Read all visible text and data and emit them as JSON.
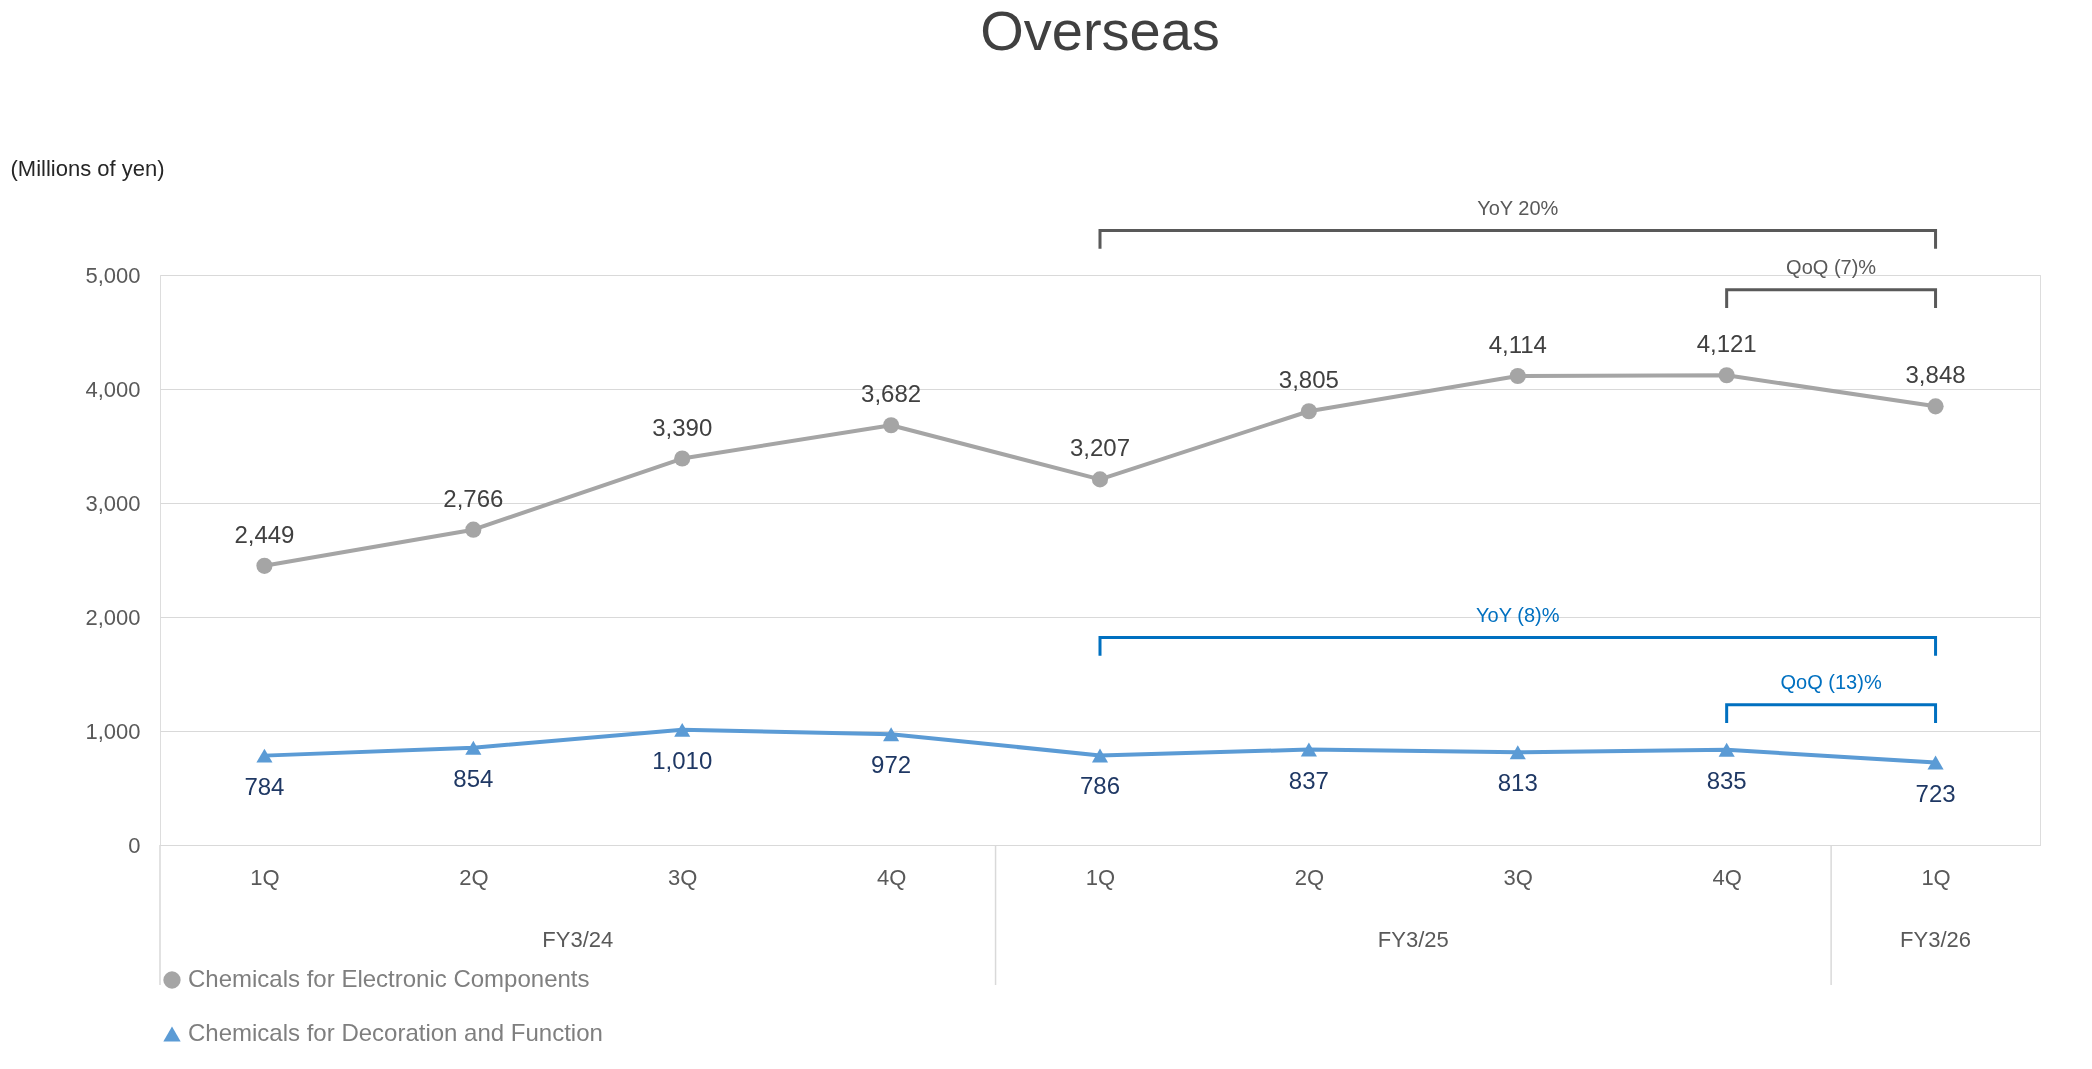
{
  "chart_data": {
    "type": "line",
    "title": "Overseas",
    "ylabel": "(Millions of yen)",
    "categories": [
      "1Q",
      "2Q",
      "3Q",
      "4Q",
      "1Q",
      "2Q",
      "3Q",
      "4Q",
      "1Q"
    ],
    "series": [
      {
        "name": "Chemicals for Electronic Components",
        "color": "#a5a5a5",
        "marker": "circle",
        "values": [
          2449,
          2766,
          3390,
          3682,
          3207,
          3805,
          4114,
          4121,
          3848
        ],
        "value_labels": [
          "2,449",
          "2,766",
          "3,390",
          "3,682",
          "3,207",
          "3,805",
          "4,114",
          "4,121",
          "3,848"
        ]
      },
      {
        "name": "Chemicals for Decoration and Function",
        "color": "#5b9bd5",
        "marker": "triangle",
        "values": [
          784,
          854,
          1010,
          972,
          786,
          837,
          813,
          835,
          723
        ],
        "value_labels": [
          "784",
          "854",
          "1,010",
          "972",
          "786",
          "837",
          "813",
          "835",
          "723"
        ]
      }
    ],
    "ylim": [
      0,
      5000
    ],
    "yticks": [
      0,
      {
        "value": 1000,
        "label": "1,000"
      },
      {
        "value": 2000,
        "label": "2,000"
      },
      {
        "value": 3000,
        "label": "3,000"
      },
      {
        "value": 4000,
        "label": "4,000"
      },
      {
        "value": 5000,
        "label": "5,000"
      }
    ],
    "grid": "y",
    "legend": "bottom",
    "annotations": [
      "YoY 20%",
      "QoQ (7)%",
      "YoY (8)%",
      "QoQ (13)%",
      "FY3/24",
      "FY3/25",
      "FY3/26"
    ]
  }
}
